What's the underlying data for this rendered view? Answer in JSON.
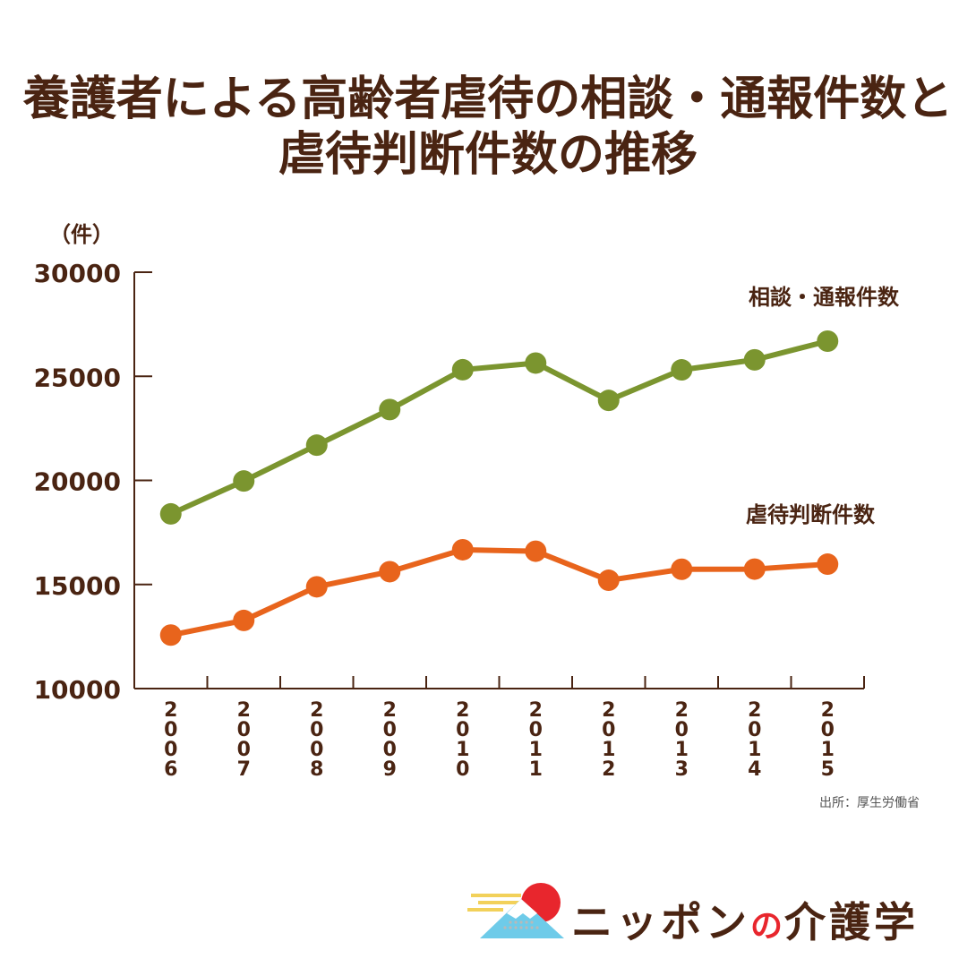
{
  "title": {
    "line1": "養護者による高齢者虐待の相談・通報件数と",
    "line2": "虐待判断件数の推移"
  },
  "source": "出所：厚生労働省",
  "brand": {
    "pre": "ニッポン",
    "no": "の",
    "post": "介護学",
    "logo_icon": "mount-fuji-sun-icon"
  },
  "chart_data": {
    "type": "line",
    "ylabel": "（件）",
    "ylim": [
      10000,
      30000
    ],
    "yticks": [
      10000,
      15000,
      20000,
      25000,
      30000
    ],
    "categories": [
      "2006",
      "2007",
      "2008",
      "2009",
      "2010",
      "2011",
      "2012",
      "2013",
      "2014",
      "2015"
    ],
    "grid": false,
    "series": [
      {
        "name": "相談・通報件数",
        "color": "#7b952f",
        "values": [
          18390,
          19971,
          21692,
          23404,
          25315,
          25636,
          23843,
          25310,
          25791,
          26688
        ]
      },
      {
        "name": "虐待判断件数",
        "color": "#e8641c",
        "values": [
          12569,
          13273,
          14889,
          15615,
          16668,
          16599,
          15202,
          15731,
          15739,
          15976
        ]
      }
    ]
  }
}
